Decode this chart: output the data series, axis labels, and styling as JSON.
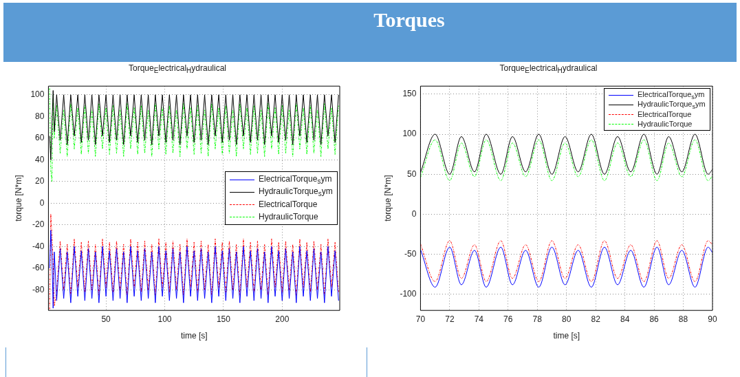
{
  "chart_data": [
    {
      "type": "line",
      "title": "Torque$_{E}$lectrical$_{H}$ydraulical",
      "xlabel": "time [s]",
      "ylabel": "torque [N*m]",
      "annotations": [
        "Torques"
      ],
      "xlim": [
        1,
        249
      ],
      "xticks": [
        50,
        100,
        150,
        200
      ],
      "ylim": [
        -99,
        108
      ],
      "yticks": [
        -80,
        -60,
        -40,
        -20,
        0,
        20,
        40,
        60,
        80,
        100
      ],
      "grid": true,
      "legend": "right",
      "x": [
        2,
        3,
        4,
        5,
        6,
        8,
        11,
        14,
        17,
        20,
        23,
        26,
        29,
        32,
        35,
        38,
        41,
        44,
        47,
        50,
        53,
        56,
        59,
        62,
        65,
        68,
        71,
        74,
        77,
        80,
        83,
        86,
        89,
        92,
        95,
        98,
        101,
        104,
        107,
        110,
        113,
        116,
        119,
        122,
        125,
        128,
        131,
        134,
        137,
        140,
        143,
        146,
        149,
        152,
        155,
        158,
        161,
        164,
        167,
        170,
        173,
        176,
        179,
        182,
        185,
        188,
        191,
        194,
        197,
        200,
        203,
        206,
        209,
        212,
        215,
        218,
        221,
        224,
        227,
        230,
        233,
        236,
        239,
        242,
        245,
        248
      ],
      "series": [
        {
          "name": "ElectricalTorque$_{s}$ym",
          "color": "#0000ff",
          "line_style": "solid",
          "values": [
            -60,
            -25,
            -50,
            -97,
            -45,
            -90,
            -42,
            -88,
            -45,
            -92,
            -40,
            -86,
            -44,
            -90,
            -42,
            -88,
            -45,
            -92,
            -40,
            -86,
            -44,
            -90,
            -42,
            -88,
            -45,
            -92,
            -40,
            -86,
            -44,
            -90,
            -42,
            -88,
            -45,
            -92,
            -40,
            -86,
            -44,
            -90,
            -42,
            -88,
            -45,
            -92,
            -40,
            -86,
            -44,
            -90,
            -42,
            -88,
            -45,
            -92,
            -40,
            -86,
            -44,
            -90,
            -42,
            -88,
            -45,
            -92,
            -40,
            -86,
            -44,
            -90,
            -42,
            -88,
            -45,
            -92,
            -40,
            -86,
            -44,
            -90,
            -42,
            -88,
            -45,
            -92,
            -40,
            -86,
            -44,
            -90,
            -42,
            -88,
            -45,
            -92,
            -40,
            -86,
            -44,
            -90
          ]
        },
        {
          "name": "HydraulicTorque$_{s}$ym",
          "color": "#000000",
          "line_style": "solid",
          "values": [
            62,
            40,
            72,
            104,
            66,
            100,
            58,
            100,
            54,
            100,
            62,
            100,
            56,
            100,
            58,
            100,
            54,
            100,
            62,
            100,
            56,
            100,
            58,
            100,
            54,
            100,
            62,
            100,
            56,
            100,
            58,
            100,
            54,
            100,
            62,
            100,
            56,
            100,
            58,
            100,
            54,
            100,
            62,
            100,
            56,
            100,
            58,
            100,
            54,
            100,
            62,
            100,
            56,
            100,
            58,
            100,
            54,
            100,
            62,
            100,
            56,
            100,
            58,
            100,
            54,
            100,
            62,
            100,
            56,
            100,
            58,
            100,
            54,
            100,
            62,
            100,
            56,
            100,
            58,
            100,
            54,
            100,
            62,
            100,
            56,
            100
          ]
        },
        {
          "name": "ElectricalTorque",
          "color": "#ff0000",
          "line_style": "dashed",
          "values": [
            -98,
            -10,
            -30,
            -55,
            -95,
            -82,
            -35,
            -80,
            -38,
            -85,
            -33,
            -78,
            -36,
            -82,
            -35,
            -80,
            -38,
            -85,
            -33,
            -78,
            -36,
            -82,
            -35,
            -80,
            -38,
            -85,
            -33,
            -78,
            -36,
            -82,
            -35,
            -80,
            -38,
            -85,
            -33,
            -78,
            -36,
            -82,
            -35,
            -80,
            -38,
            -85,
            -33,
            -78,
            -36,
            -82,
            -35,
            -80,
            -38,
            -85,
            -33,
            -78,
            -36,
            -82,
            -35,
            -80,
            -38,
            -85,
            -33,
            -78,
            -36,
            -82,
            -35,
            -80,
            -38,
            -85,
            -33,
            -78,
            -36,
            -82,
            -35,
            -80,
            -38,
            -85,
            -33,
            -78,
            -36,
            -82,
            -35,
            -80,
            -38,
            -85,
            -33,
            -78,
            -36,
            -82
          ]
        },
        {
          "name": "HydraulicTorque",
          "color": "#00ff00",
          "line_style": "dashed",
          "values": [
            106,
            30,
            20,
            100,
            60,
            90,
            46,
            86,
            43,
            92,
            50,
            88,
            45,
            90,
            46,
            86,
            43,
            92,
            50,
            88,
            45,
            90,
            46,
            86,
            43,
            92,
            50,
            88,
            45,
            90,
            46,
            86,
            43,
            92,
            50,
            88,
            45,
            90,
            46,
            86,
            43,
            92,
            50,
            88,
            45,
            90,
            46,
            86,
            43,
            92,
            50,
            88,
            45,
            90,
            46,
            86,
            43,
            92,
            50,
            88,
            45,
            90,
            46,
            86,
            43,
            92,
            50,
            88,
            45,
            90,
            46,
            86,
            43,
            92,
            50,
            88,
            45,
            90,
            46,
            86,
            43,
            92,
            50,
            88,
            45,
            90
          ]
        }
      ]
    },
    {
      "type": "line",
      "title": "Torque$_{E}$lectrical$_{H}$ydraulical",
      "xlabel": "time [s]",
      "ylabel": "torque [N*m]",
      "xlim": [
        70,
        90
      ],
      "xticks": [
        70,
        72,
        74,
        76,
        78,
        80,
        82,
        84,
        86,
        88,
        90
      ],
      "ylim": [
        -120,
        160
      ],
      "yticks": [
        -100,
        -50,
        0,
        50,
        100,
        150
      ],
      "grid": true,
      "legend": "top right",
      "x": [
        70,
        71.0,
        72.0,
        72.8,
        73.7,
        74.5,
        75.5,
        76.3,
        77.2,
        78.1,
        79.0,
        79.9,
        80.8,
        81.7,
        82.6,
        83.5,
        84.4,
        85.3,
        86.2,
        87.0,
        87.9,
        88.8,
        89.7,
        90
      ],
      "series": [
        {
          "name": "ElectricalTorque$_{s}$ym",
          "color": "#0000ff",
          "line_style": "solid",
          "values": [
            -44,
            -91,
            -41,
            -88,
            -45,
            -91,
            -41,
            -88,
            -45,
            -91,
            -41,
            -88,
            -45,
            -91,
            -41,
            -88,
            -45,
            -91,
            -41,
            -88,
            -45,
            -91,
            -41,
            -48
          ]
        },
        {
          "name": "HydraulicTorque$_{s}$ym",
          "color": "#000000",
          "line_style": "solid",
          "values": [
            52,
            100,
            50,
            97,
            53,
            100,
            50,
            97,
            53,
            100,
            50,
            97,
            53,
            100,
            50,
            97,
            53,
            100,
            50,
            97,
            53,
            100,
            50,
            56
          ]
        },
        {
          "name": "ElectricalTorque",
          "color": "#ff0000",
          "line_style": "dashed",
          "values": [
            -37,
            -84,
            -33,
            -80,
            -38,
            -84,
            -33,
            -80,
            -38,
            -84,
            -33,
            -80,
            -38,
            -84,
            -33,
            -80,
            -38,
            -84,
            -33,
            -80,
            -38,
            -84,
            -33,
            -38
          ]
        },
        {
          "name": "HydraulicTorque",
          "color": "#00ff00",
          "line_style": "dashed",
          "values": [
            46,
            93,
            42,
            89,
            47,
            93,
            42,
            89,
            47,
            93,
            42,
            89,
            47,
            93,
            42,
            89,
            47,
            93,
            42,
            89,
            47,
            93,
            42,
            48
          ]
        }
      ]
    }
  ]
}
